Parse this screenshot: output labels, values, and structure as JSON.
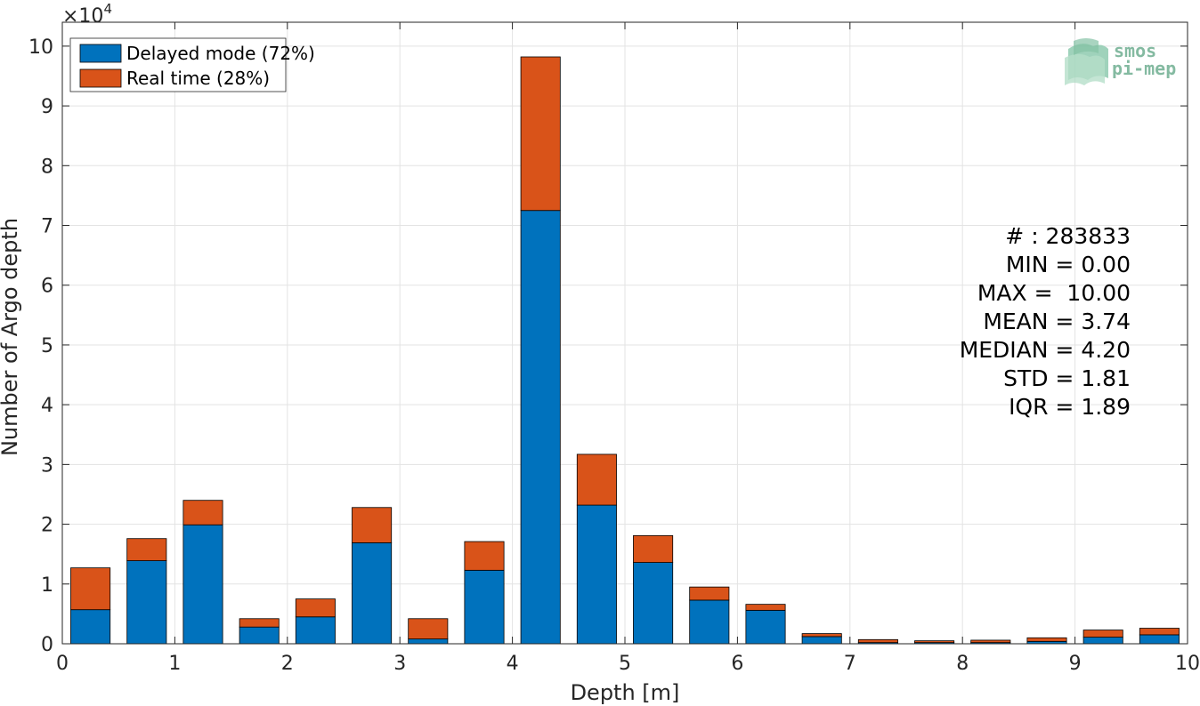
{
  "chart_data": {
    "type": "bar",
    "stacked": true,
    "xlabel": "Depth [m]",
    "ylabel": "Number of Argo depth",
    "xlim": [
      0,
      10
    ],
    "ylim": [
      0,
      104000
    ],
    "y_exponent_label": "×10",
    "y_exponent_power": "4",
    "x_ticks": [
      "0",
      "1",
      "2",
      "3",
      "4",
      "5",
      "6",
      "7",
      "8",
      "9",
      "10"
    ],
    "y_ticks": [
      "0",
      "1",
      "2",
      "3",
      "4",
      "5",
      "6",
      "7",
      "8",
      "9",
      "10"
    ],
    "grid": true,
    "legend_position": "top-left",
    "x": [
      0.25,
      0.75,
      1.25,
      1.75,
      2.25,
      2.75,
      3.25,
      3.75,
      4.25,
      4.75,
      5.25,
      5.75,
      6.25,
      6.75,
      7.25,
      7.75,
      8.25,
      8.75,
      9.25,
      9.75
    ],
    "series": [
      {
        "name": "Delayed mode (72%)",
        "color": "#0072bd",
        "values": [
          5700,
          13900,
          19900,
          2800,
          4500,
          16900,
          800,
          12300,
          72500,
          23200,
          13600,
          7300,
          5600,
          1200,
          200,
          200,
          200,
          400,
          1100,
          1500
        ]
      },
      {
        "name": "Real time (28%)",
        "color": "#d95319",
        "values": [
          7000,
          3700,
          4100,
          1400,
          3000,
          5900,
          3400,
          4800,
          25700,
          8500,
          4500,
          2200,
          1000,
          500,
          500,
          300,
          400,
          600,
          1200,
          1100
        ]
      }
    ],
    "stats": [
      "# : 283833",
      "MIN = 0.00",
      "MAX =  10.00",
      "MEAN = 3.74",
      "MEDIAN = 4.20",
      "STD = 1.81",
      "IQR = 1.89"
    ]
  },
  "logo": {
    "line1": "smos",
    "line2": "pi-mep"
  }
}
